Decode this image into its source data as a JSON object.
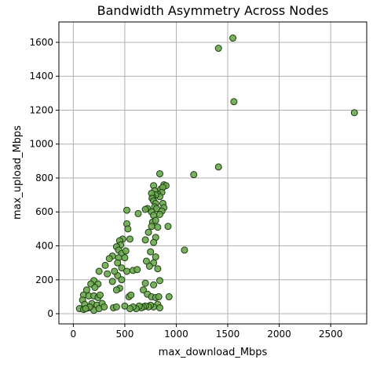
{
  "chart_data": {
    "type": "scatter",
    "title": "Bandwidth Asymmetry Across Nodes",
    "xlabel": "max_download_Mbps",
    "ylabel": "max_upload_Mbps",
    "xlim": [
      -140,
      2850
    ],
    "ylim": [
      -60,
      1720
    ],
    "xticks": [
      0,
      500,
      1000,
      1500,
      2000,
      2500
    ],
    "yticks": [
      0,
      200,
      400,
      600,
      800,
      1000,
      1200,
      1400,
      1600
    ],
    "grid": true,
    "point_color": "#6aa84f",
    "point_edge_color": "#1e3d12",
    "points": [
      {
        "x": 1550,
        "y": 1625
      },
      {
        "x": 1410,
        "y": 1565
      },
      {
        "x": 1560,
        "y": 1250
      },
      {
        "x": 2730,
        "y": 1185
      },
      {
        "x": 1410,
        "y": 865
      },
      {
        "x": 1170,
        "y": 820
      },
      {
        "x": 1080,
        "y": 375
      },
      {
        "x": 920,
        "y": 515
      },
      {
        "x": 930,
        "y": 100
      },
      {
        "x": 840,
        "y": 825
      },
      {
        "x": 880,
        "y": 760
      },
      {
        "x": 900,
        "y": 755
      },
      {
        "x": 850,
        "y": 735
      },
      {
        "x": 870,
        "y": 745
      },
      {
        "x": 860,
        "y": 715
      },
      {
        "x": 820,
        "y": 705
      },
      {
        "x": 840,
        "y": 690
      },
      {
        "x": 780,
        "y": 755
      },
      {
        "x": 790,
        "y": 725
      },
      {
        "x": 800,
        "y": 700
      },
      {
        "x": 770,
        "y": 690
      },
      {
        "x": 760,
        "y": 710
      },
      {
        "x": 765,
        "y": 680
      },
      {
        "x": 780,
        "y": 665
      },
      {
        "x": 800,
        "y": 650
      },
      {
        "x": 790,
        "y": 630
      },
      {
        "x": 810,
        "y": 620
      },
      {
        "x": 870,
        "y": 650
      },
      {
        "x": 880,
        "y": 625
      },
      {
        "x": 860,
        "y": 605
      },
      {
        "x": 840,
        "y": 585
      },
      {
        "x": 720,
        "y": 620
      },
      {
        "x": 700,
        "y": 615
      },
      {
        "x": 760,
        "y": 600
      },
      {
        "x": 780,
        "y": 580
      },
      {
        "x": 770,
        "y": 540
      },
      {
        "x": 800,
        "y": 550
      },
      {
        "x": 760,
        "y": 515
      },
      {
        "x": 820,
        "y": 510
      },
      {
        "x": 730,
        "y": 480
      },
      {
        "x": 700,
        "y": 435
      },
      {
        "x": 800,
        "y": 450
      },
      {
        "x": 780,
        "y": 420
      },
      {
        "x": 750,
        "y": 365
      },
      {
        "x": 800,
        "y": 335
      },
      {
        "x": 780,
        "y": 300
      },
      {
        "x": 710,
        "y": 310
      },
      {
        "x": 740,
        "y": 280
      },
      {
        "x": 820,
        "y": 265
      },
      {
        "x": 840,
        "y": 195
      },
      {
        "x": 780,
        "y": 170
      },
      {
        "x": 700,
        "y": 180
      },
      {
        "x": 680,
        "y": 140
      },
      {
        "x": 720,
        "y": 115
      },
      {
        "x": 760,
        "y": 100
      },
      {
        "x": 800,
        "y": 95
      },
      {
        "x": 830,
        "y": 100
      },
      {
        "x": 820,
        "y": 55
      },
      {
        "x": 840,
        "y": 35
      },
      {
        "x": 780,
        "y": 40
      },
      {
        "x": 750,
        "y": 50
      },
      {
        "x": 730,
        "y": 40
      },
      {
        "x": 700,
        "y": 45
      },
      {
        "x": 680,
        "y": 40
      },
      {
        "x": 660,
        "y": 35
      },
      {
        "x": 640,
        "y": 45
      },
      {
        "x": 610,
        "y": 30
      },
      {
        "x": 580,
        "y": 40
      },
      {
        "x": 550,
        "y": 30
      },
      {
        "x": 500,
        "y": 45
      },
      {
        "x": 520,
        "y": 610
      },
      {
        "x": 630,
        "y": 590
      },
      {
        "x": 520,
        "y": 530
      },
      {
        "x": 530,
        "y": 500
      },
      {
        "x": 550,
        "y": 440
      },
      {
        "x": 480,
        "y": 440
      },
      {
        "x": 450,
        "y": 430
      },
      {
        "x": 460,
        "y": 405
      },
      {
        "x": 420,
        "y": 395
      },
      {
        "x": 440,
        "y": 375
      },
      {
        "x": 470,
        "y": 355
      },
      {
        "x": 510,
        "y": 370
      },
      {
        "x": 500,
        "y": 330
      },
      {
        "x": 440,
        "y": 330
      },
      {
        "x": 380,
        "y": 340
      },
      {
        "x": 350,
        "y": 325
      },
      {
        "x": 430,
        "y": 300
      },
      {
        "x": 310,
        "y": 285
      },
      {
        "x": 470,
        "y": 270
      },
      {
        "x": 580,
        "y": 255
      },
      {
        "x": 520,
        "y": 250
      },
      {
        "x": 430,
        "y": 225
      },
      {
        "x": 330,
        "y": 235
      },
      {
        "x": 250,
        "y": 250
      },
      {
        "x": 470,
        "y": 200
      },
      {
        "x": 200,
        "y": 195
      },
      {
        "x": 170,
        "y": 175
      },
      {
        "x": 240,
        "y": 175
      },
      {
        "x": 210,
        "y": 155
      },
      {
        "x": 450,
        "y": 150
      },
      {
        "x": 420,
        "y": 140
      },
      {
        "x": 130,
        "y": 140
      },
      {
        "x": 100,
        "y": 110
      },
      {
        "x": 150,
        "y": 105
      },
      {
        "x": 200,
        "y": 105
      },
      {
        "x": 240,
        "y": 95
      },
      {
        "x": 260,
        "y": 110
      },
      {
        "x": 90,
        "y": 80
      },
      {
        "x": 110,
        "y": 55
      },
      {
        "x": 180,
        "y": 60
      },
      {
        "x": 230,
        "y": 50
      },
      {
        "x": 280,
        "y": 60
      },
      {
        "x": 60,
        "y": 30
      },
      {
        "x": 100,
        "y": 25
      },
      {
        "x": 150,
        "y": 35
      },
      {
        "x": 200,
        "y": 20
      },
      {
        "x": 250,
        "y": 30
      },
      {
        "x": 300,
        "y": 40
      },
      {
        "x": 390,
        "y": 35
      },
      {
        "x": 420,
        "y": 40
      },
      {
        "x": 160,
        "y": 40
      },
      {
        "x": 120,
        "y": 30
      },
      {
        "x": 380,
        "y": 190
      },
      {
        "x": 400,
        "y": 250
      },
      {
        "x": 540,
        "y": 100
      },
      {
        "x": 560,
        "y": 110
      },
      {
        "x": 620,
        "y": 260
      }
    ]
  }
}
